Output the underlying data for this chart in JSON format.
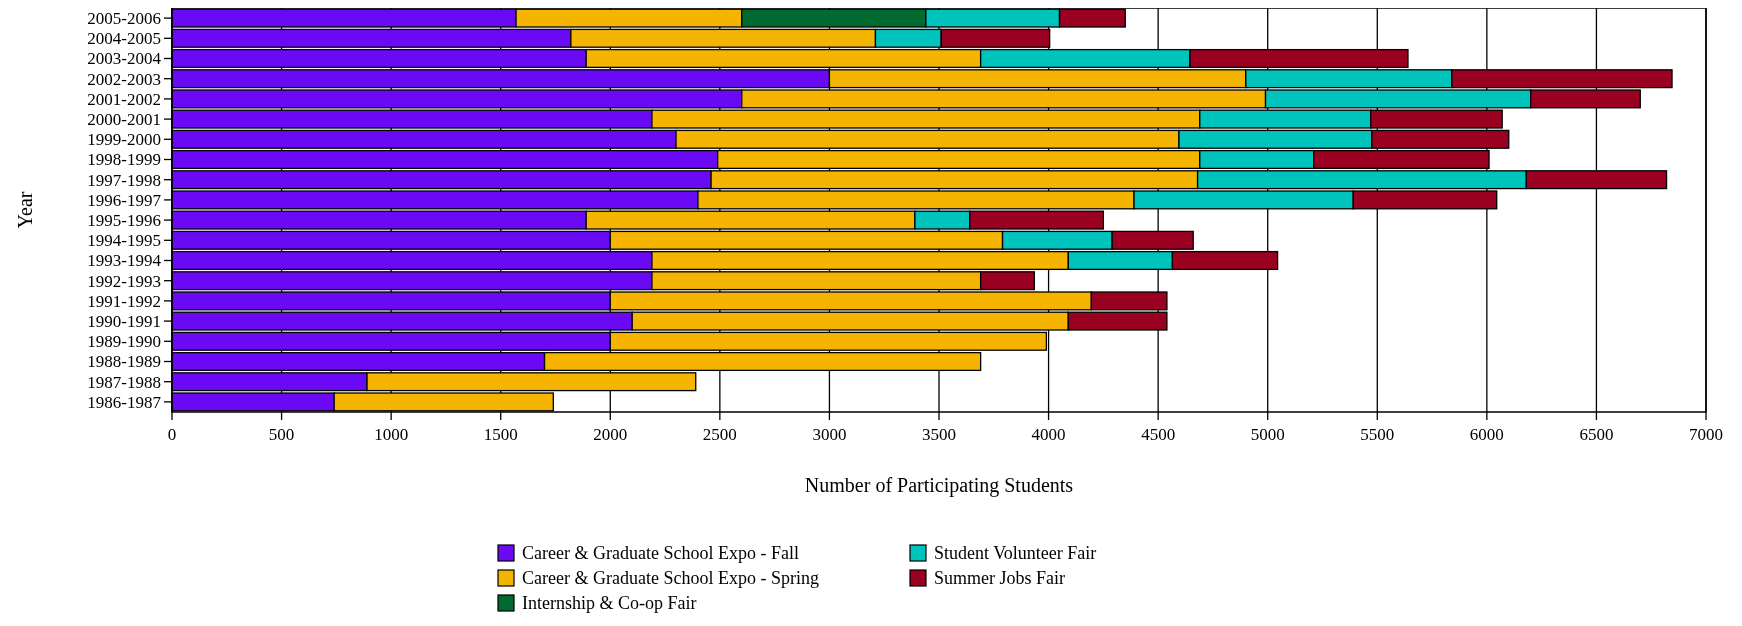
{
  "chart_data": {
    "type": "bar",
    "orientation": "horizontal",
    "stacked": true,
    "xlabel": "Number of Participating Students",
    "ylabel": "Year",
    "categories": [
      "2005-2006",
      "2004-2005",
      "2003-2004",
      "2002-2003",
      "2001-2002",
      "2000-2001",
      "1999-2000",
      "1998-1999",
      "1997-1998",
      "1996-1997",
      "1995-1996",
      "1994-1995",
      "1993-1994",
      "1992-1993",
      "1991-1992",
      "1990-1991",
      "1989-1990",
      "1988-1989",
      "1987-1988",
      "1986-1987"
    ],
    "series": [
      {
        "name": "Career & Graduate School Expo - Fall",
        "color": "#6a0af5",
        "values": [
          1570,
          1820,
          1890,
          3000,
          2600,
          2190,
          2300,
          2490,
          2460,
          2400,
          1890,
          2000,
          2190,
          2190,
          2000,
          2100,
          2000,
          1700,
          890,
          740
        ]
      },
      {
        "name": "Career & Graduate School Expo - Spring",
        "color": "#f5b400",
        "values": [
          1030,
          1390,
          1800,
          1900,
          2390,
          2500,
          2295,
          2200,
          2220,
          1990,
          1500,
          1790,
          1900,
          1500,
          2195,
          1990,
          1990,
          1990,
          1500,
          1000
        ]
      },
      {
        "name": "Internship & Co-op Fair",
        "color": "#006a30",
        "values": [
          840,
          null,
          null,
          null,
          null,
          null,
          null,
          null,
          null,
          null,
          null,
          null,
          null,
          null,
          null,
          null,
          null,
          null,
          null,
          null
        ]
      },
      {
        "name": "Student Volunteer Fair",
        "color": "#00c4bc",
        "values": [
          610,
          300,
          955,
          940,
          1210,
          780,
          880,
          520,
          1500,
          1000,
          250,
          500,
          475,
          null,
          null,
          null,
          null,
          null,
          null,
          null
        ]
      },
      {
        "name": "Summer Jobs Fair",
        "color": "#9a0020",
        "values": [
          300,
          495,
          995,
          1005,
          500,
          600,
          625,
          800,
          640,
          655,
          610,
          370,
          480,
          245,
          345,
          450,
          null,
          null,
          null,
          null
        ]
      }
    ],
    "xlim": [
      0,
      7000
    ],
    "xticks": [
      0,
      500,
      1000,
      1500,
      2000,
      2500,
      3000,
      3500,
      4000,
      4500,
      5000,
      5500,
      6000,
      6500,
      7000
    ],
    "grid": "x",
    "legend": "bottom"
  }
}
